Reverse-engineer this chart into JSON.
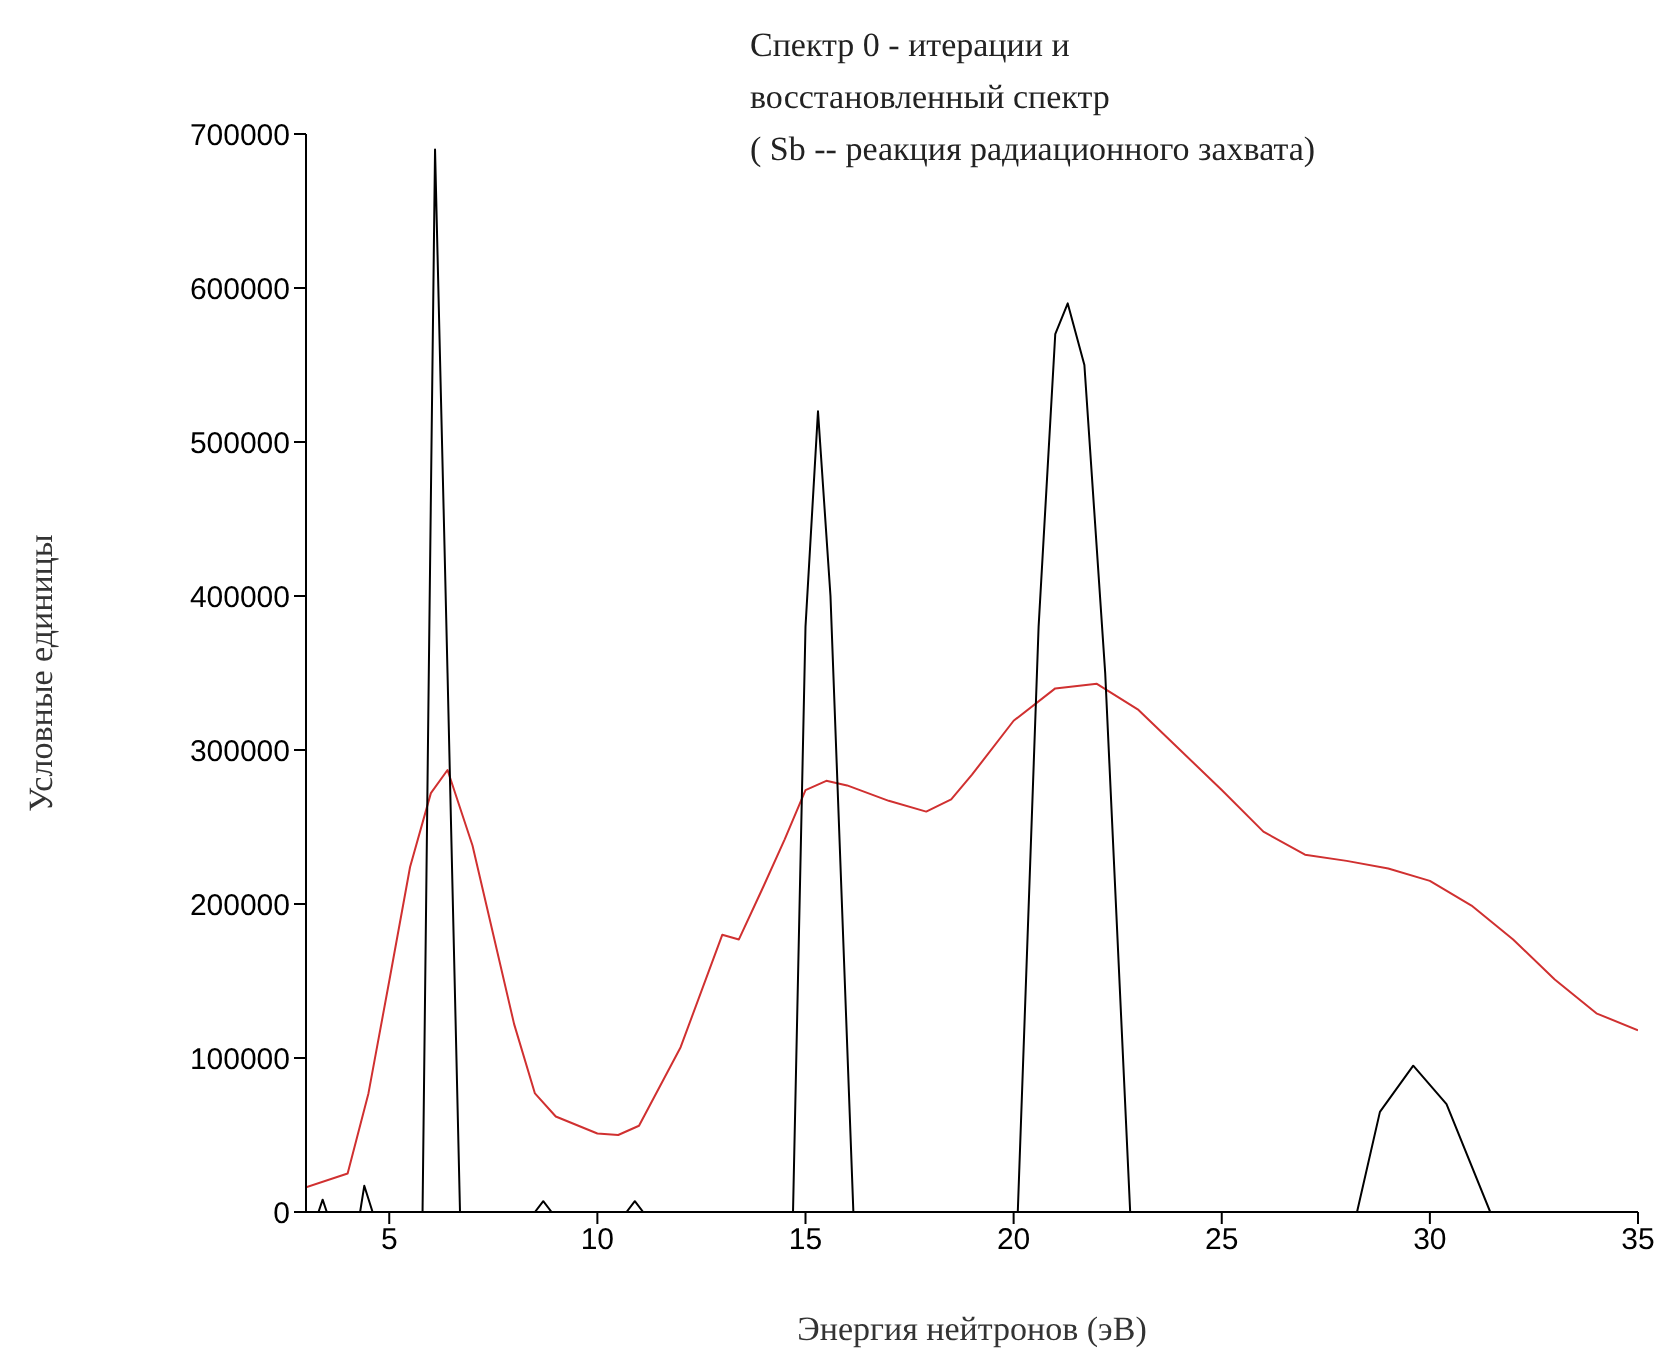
{
  "chart_data": {
    "type": "line",
    "title": "Спектр 0 - итерации и\nвосстановленный спектр\n( Sb -- реакция радиационного захвата)",
    "xlabel": "Энергия нейтронов (эВ)",
    "ylabel": "Условные единицы",
    "xlim": [
      3,
      35
    ],
    "xticks": [
      5,
      10,
      15,
      20,
      25,
      30,
      35
    ],
    "ylim": [
      0,
      700000
    ],
    "yticks": [
      0,
      100000,
      200000,
      300000,
      400000,
      500000,
      600000,
      700000
    ],
    "marker": "none",
    "line_style": "solid",
    "series": [
      {
        "color": "#d03030",
        "x": [
          3,
          4,
          4.5,
          5,
          5.5,
          6,
          6.4,
          7,
          7.5,
          8,
          8.5,
          9,
          10,
          10.5,
          11,
          12,
          13,
          13.4,
          14,
          14.5,
          15,
          15.5,
          16,
          17,
          17.9,
          18.5,
          19,
          20,
          21,
          22,
          23,
          24,
          25,
          26,
          27,
          28,
          29,
          30,
          31,
          32,
          33,
          34,
          35
        ],
        "values": [
          16000,
          25000,
          77000,
          150000,
          224000,
          272000,
          287000,
          238000,
          180000,
          122000,
          77000,
          62000,
          51000,
          50000,
          56000,
          107000,
          180000,
          177000,
          212000,
          242000,
          274000,
          280000,
          277000,
          267000,
          260000,
          268000,
          284000,
          319000,
          340000,
          343000,
          326000,
          300000,
          274000,
          247000,
          232000,
          228000,
          223000,
          215000,
          199000,
          177000,
          151000,
          129000,
          118000
        ]
      },
      {
        "color": "#000000",
        "x": [
          3,
          3.3,
          3.4,
          3.5,
          4.3,
          4.4,
          4.6,
          5.8,
          5.95,
          6.1,
          6.4,
          6.7,
          8.5,
          8.7,
          8.9,
          10.7,
          10.9,
          11.1,
          14.7,
          15,
          15.3,
          15.6,
          16.15,
          20.1,
          20.6,
          21,
          21.3,
          21.7,
          22.2,
          22.8,
          28.25,
          28.8,
          29.6,
          30.4,
          31.45,
          35
        ],
        "values": [
          0,
          0,
          8000,
          0,
          0,
          17000,
          0,
          0,
          350000,
          690000,
          350000,
          0,
          0,
          7000,
          0,
          0,
          7000,
          0,
          0,
          380000,
          520000,
          400000,
          0,
          0,
          380000,
          570000,
          590000,
          550000,
          350000,
          0,
          0,
          65000,
          95000,
          70000,
          0,
          0
        ]
      }
    ]
  }
}
